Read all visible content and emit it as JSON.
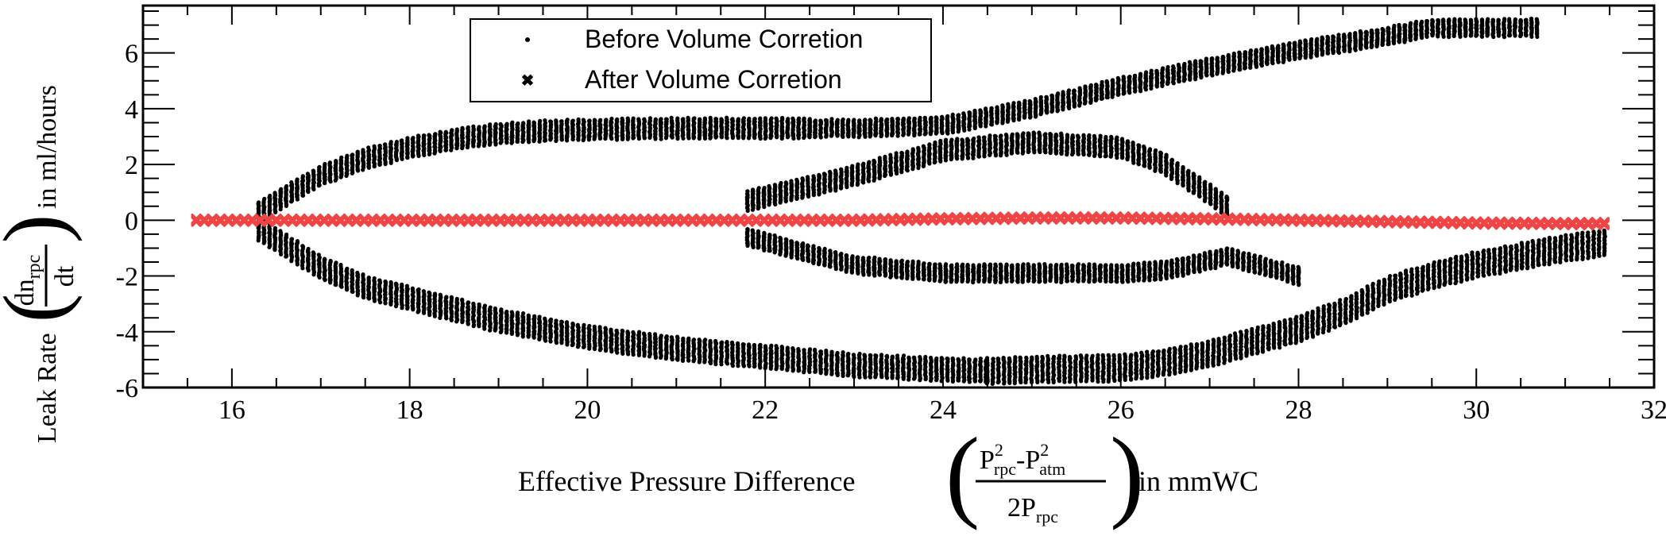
{
  "chart_data": {
    "type": "scatter",
    "xlabel": {
      "prefix": "Effective Pressure Difference",
      "num_a": "P",
      "num_a_sup": "2",
      "num_a_sub": "rpc",
      "num_mid": "-P",
      "num_b_sup": "2",
      "num_b_sub": "atm",
      "den": "2P",
      "den_sub": "rpc",
      "suffix": "in mmWC"
    },
    "ylabel": {
      "prefix": "Leak Rate",
      "num": "dn",
      "num_sub": "rpc",
      "den": "dt",
      "suffix": "in ml/hours"
    },
    "xlim": [
      15,
      32
    ],
    "ylim": [
      -6,
      7.7
    ],
    "xticks": [
      "16",
      "18",
      "20",
      "22",
      "24",
      "26",
      "28",
      "30",
      "32"
    ],
    "yticks": [
      "-6",
      "-4",
      "-2",
      "0",
      "2",
      "4",
      "6"
    ],
    "legend_position": "top-center-left",
    "grid": false,
    "series": [
      {
        "name": "Before Volume Corretion",
        "color": "#000000",
        "marker": "dot",
        "bands": [
          {
            "label": "upper-left arc",
            "x": [
              16.3,
              17.0,
              17.5,
              18.0,
              18.5,
              19.0,
              19.5,
              20.0,
              21.0,
              22.0,
              22.5
            ],
            "y": [
              0.3,
              1.6,
              2.2,
              2.6,
              2.9,
              3.1,
              3.2,
              3.25,
              3.3,
              3.3,
              3.3
            ],
            "spread": 0.35
          },
          {
            "label": "lower-left arc",
            "x": [
              16.3,
              17.0,
              17.5,
              18.0,
              18.5,
              19.0,
              19.5,
              20.0,
              21.0,
              22.0,
              23.0,
              24.0,
              24.5
            ],
            "y": [
              -0.3,
              -1.7,
              -2.4,
              -2.8,
              -3.2,
              -3.6,
              -3.9,
              -4.2,
              -4.6,
              -4.9,
              -5.2,
              -5.35,
              -5.4
            ],
            "spread": 0.4
          },
          {
            "label": "upper-right arc",
            "x": [
              22.5,
              23.0,
              24.0,
              25.0,
              26.0,
              27.0,
              28.0,
              29.0,
              29.5,
              30.0,
              30.7
            ],
            "y": [
              3.3,
              3.3,
              3.4,
              4.0,
              4.8,
              5.5,
              6.1,
              6.6,
              6.9,
              6.9,
              6.9
            ],
            "spread": 0.3
          },
          {
            "label": "lower-right arc",
            "x": [
              24.5,
              25.0,
              26.0,
              26.5,
              27.0,
              28.0,
              28.5,
              29.0,
              29.5,
              30.0,
              30.5,
              31.0,
              31.5
            ],
            "y": [
              -5.4,
              -5.35,
              -5.3,
              -5.1,
              -4.8,
              -3.9,
              -3.3,
              -2.5,
              -2.0,
              -1.6,
              -1.3,
              -1.0,
              -0.8
            ],
            "spread": 0.45
          },
          {
            "label": "middle upper blob",
            "x": [
              21.8,
              22.5,
              23.0,
              24.0,
              25.0,
              26.0,
              26.5,
              27.2
            ],
            "y": [
              0.7,
              1.2,
              1.6,
              2.5,
              2.8,
              2.6,
              2.0,
              0.5
            ],
            "spread": 0.35
          },
          {
            "label": "middle lower blob",
            "x": [
              21.8,
              22.5,
              23.0,
              24.0,
              25.0,
              26.0,
              26.5,
              27.2,
              28.0
            ],
            "y": [
              -0.6,
              -1.2,
              -1.6,
              -1.9,
              -1.9,
              -1.9,
              -1.8,
              -1.3,
              -2.0
            ],
            "spread": 0.3
          }
        ]
      },
      {
        "name": "After Volume Corretion",
        "color": "#f04545",
        "marker": "x",
        "x": [
          15.6,
          15.8,
          16.0,
          17.0,
          18.0,
          19.0,
          20.0,
          21.0,
          22.0,
          23.0,
          24.0,
          25.0,
          26.0,
          27.0,
          28.0,
          29.0,
          30.0,
          31.0,
          31.5
        ],
        "y": [
          0.0,
          0.0,
          0.0,
          0.0,
          0.0,
          0.0,
          0.0,
          0.0,
          0.0,
          0.0,
          0.05,
          0.08,
          0.08,
          0.05,
          0.0,
          -0.05,
          -0.1,
          -0.12,
          -0.12
        ]
      }
    ]
  }
}
